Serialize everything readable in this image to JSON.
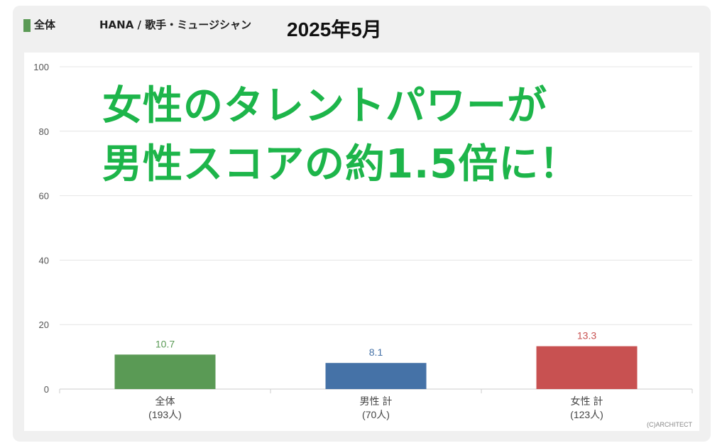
{
  "header": {
    "segment_label": "全体",
    "subject": "HANA / 歌手・ミュージシャン",
    "period": "2025年5月"
  },
  "headline": {
    "line1": "女性のタレントパワーが",
    "line2": "男性スコアの約1.5倍に！"
  },
  "copyright": "(C)ARCHITECT",
  "colors": {
    "segment_marker": "#5a9a55",
    "headline": "#1db54a",
    "grid": "#e4e4e4",
    "axis": "#cccccc"
  },
  "chart_data": {
    "type": "bar",
    "categories": [
      {
        "line1": "全体",
        "line2": "(193人)"
      },
      {
        "line1": "男性 計",
        "line2": "(70人)"
      },
      {
        "line1": "女性 計",
        "line2": "(123人)"
      }
    ],
    "values": [
      10.7,
      8.1,
      13.3
    ],
    "value_labels": [
      "10.7",
      "8.1",
      "13.3"
    ],
    "bar_colors": [
      "#5a9a55",
      "#4572a7",
      "#c85151"
    ],
    "ylim": [
      0,
      100
    ],
    "yticks": [
      0,
      20,
      40,
      60,
      80,
      100
    ],
    "grid": true
  }
}
